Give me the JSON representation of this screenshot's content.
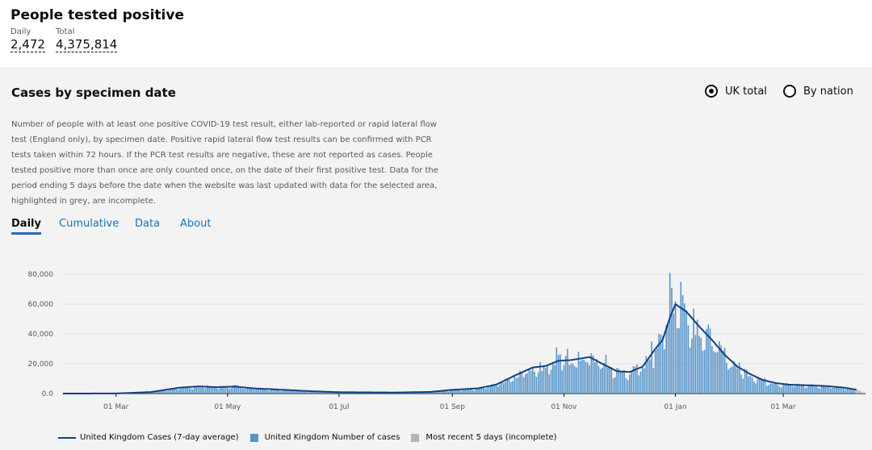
{
  "header": {
    "title": "People tested positive",
    "daily_label": "Daily",
    "daily_value": "2,472",
    "total_label": "Total",
    "total_value": "4,375,814"
  },
  "card": {
    "title": "Cases by specimen date",
    "radio_uk": "UK total",
    "radio_nation": "By nation",
    "description": "Number of people with at least one positive COVID-19 test result, either lab-reported or rapid lateral flow test (England only), by specimen date. Positive rapid lateral flow test results can be confirmed with PCR tests taken within 72 hours. If the PCR test results are negative, these are not reported as cases. People tested positive more than once are only counted once, on the date of their first positive test. Data for the period ending 5 days before the date when the website was last updated with data for the selected area, highlighted in grey, are incomplete.",
    "tabs": [
      "Daily",
      "Cumulative",
      "Data",
      "About"
    ]
  },
  "colors": {
    "avg_line": "#12407f",
    "bars": "#5694ca",
    "incomplete": "#b1b4b6",
    "link": "#1d70b8"
  },
  "chart_data": {
    "type": "bar",
    "ylim": [
      0,
      85000
    ],
    "y_ticks": [
      "0.0",
      "20,000",
      "40,000",
      "60,000",
      "80,000"
    ],
    "x_ticks": [
      "01 Mar",
      "01 May",
      "01 Jul",
      "01 Sep",
      "01 Nov",
      "01 Jan",
      "01 Mar"
    ],
    "x_range": [
      "2020-02-01",
      "2021-04-15"
    ],
    "x_tick_dates": [
      "2020-03-01",
      "2020-05-01",
      "2020-07-01",
      "2020-09-01",
      "2020-11-01",
      "2021-01-01",
      "2021-03-01"
    ],
    "series": [
      {
        "name": "United Kingdom Cases (7-day average)",
        "kind": "line"
      },
      {
        "name": "United Kingdom Number of cases",
        "kind": "bar"
      },
      {
        "name": "Most recent 5 days (incomplete)",
        "kind": "bar"
      }
    ],
    "average": [
      [
        "2020-02-01",
        0
      ],
      [
        "2020-03-01",
        50
      ],
      [
        "2020-03-20",
        1000
      ],
      [
        "2020-04-05",
        4000
      ],
      [
        "2020-04-15",
        4800
      ],
      [
        "2020-04-25",
        4300
      ],
      [
        "2020-05-05",
        4700
      ],
      [
        "2020-05-15",
        3500
      ],
      [
        "2020-06-01",
        2500
      ],
      [
        "2020-06-15",
        1600
      ],
      [
        "2020-07-01",
        900
      ],
      [
        "2020-08-01",
        700
      ],
      [
        "2020-08-20",
        1100
      ],
      [
        "2020-09-01",
        2500
      ],
      [
        "2020-09-15",
        3500
      ],
      [
        "2020-09-25",
        6000
      ],
      [
        "2020-10-05",
        12000
      ],
      [
        "2020-10-15",
        17500
      ],
      [
        "2020-10-22",
        18500
      ],
      [
        "2020-10-29",
        22000
      ],
      [
        "2020-11-05",
        22500
      ],
      [
        "2020-11-15",
        24500
      ],
      [
        "2020-11-22",
        20000
      ],
      [
        "2020-11-30",
        15000
      ],
      [
        "2020-12-07",
        14500
      ],
      [
        "2020-12-14",
        18000
      ],
      [
        "2020-12-21",
        30000
      ],
      [
        "2020-12-25",
        36000
      ],
      [
        "2020-12-29",
        51000
      ],
      [
        "2021-01-01",
        60000
      ],
      [
        "2021-01-07",
        55000
      ],
      [
        "2021-01-14",
        45000
      ],
      [
        "2021-01-21",
        36000
      ],
      [
        "2021-01-28",
        26000
      ],
      [
        "2021-02-04",
        18000
      ],
      [
        "2021-02-11",
        13000
      ],
      [
        "2021-02-18",
        9000
      ],
      [
        "2021-02-25",
        7000
      ],
      [
        "2021-03-04",
        6000
      ],
      [
        "2021-03-15",
        5500
      ],
      [
        "2021-03-25",
        5000
      ],
      [
        "2021-04-03",
        4000
      ],
      [
        "2021-04-10",
        2600
      ]
    ],
    "daily_spikes": [
      [
        "2020-10-28",
        31000
      ],
      [
        "2020-11-03",
        30000
      ],
      [
        "2020-11-24",
        26000
      ],
      [
        "2020-12-19",
        35000
      ],
      [
        "2020-12-27",
        46000
      ],
      [
        "2020-12-29",
        81000
      ],
      [
        "2020-12-30",
        71000
      ],
      [
        "2021-01-01",
        62000
      ],
      [
        "2021-01-04",
        75000
      ],
      [
        "2021-01-05",
        66000
      ],
      [
        "2021-01-11",
        57000
      ]
    ],
    "incomplete_days": 5
  },
  "legend": {
    "avg": "United Kingdom Cases (7-day average)",
    "bars": "United Kingdom Number of cases",
    "incomplete": "Most recent 5 days (incomplete)"
  }
}
